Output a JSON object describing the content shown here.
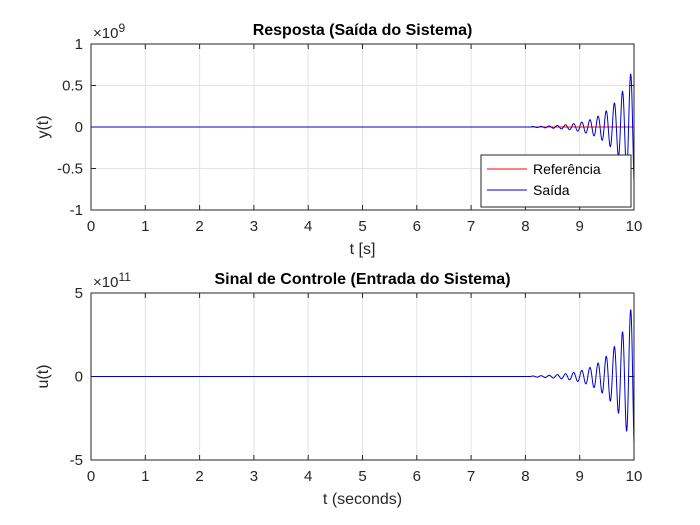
{
  "chart_data": [
    {
      "type": "line",
      "title": "Resposta (Saída do Sistema)",
      "xlabel": "t [s]",
      "ylabel": "y(t)",
      "xlim": [
        0,
        10
      ],
      "ylim": [
        -1,
        1
      ],
      "y_exponent": "9",
      "xticks": [
        "0",
        "1",
        "2",
        "3",
        "4",
        "5",
        "6",
        "7",
        "8",
        "9",
        "10"
      ],
      "yticks": [
        "1",
        "0.5",
        "0",
        "-0.5",
        "-1"
      ],
      "grid": true,
      "legend_position": "lower-right",
      "series": [
        {
          "name": "Referência",
          "color": "#ff0000",
          "x": [
            0,
            10
          ],
          "y": [
            0,
            0
          ]
        },
        {
          "name": "Saída",
          "color": "#0000cc",
          "envelope": {
            "t_start": 8.1,
            "t_end": 10.0,
            "peak_start": 0.005,
            "peak_end": 0.75,
            "period": 0.15
          }
        }
      ]
    },
    {
      "type": "line",
      "title": "Sinal de Controle (Entrada do Sistema)",
      "xlabel": "t (seconds)",
      "ylabel": "u(t)",
      "xlim": [
        0,
        10
      ],
      "ylim": [
        -5,
        5
      ],
      "y_exponent": "11",
      "xticks": [
        "0",
        "1",
        "2",
        "3",
        "4",
        "5",
        "6",
        "7",
        "8",
        "9",
        "10"
      ],
      "yticks": [
        "5",
        "0",
        "-5"
      ],
      "grid": true,
      "series": [
        {
          "color": "#0000cc",
          "envelope": {
            "t_start": 8.1,
            "t_end": 10.0,
            "peak_start": 0.03,
            "peak_end": 4.7,
            "period": 0.15
          }
        }
      ]
    }
  ]
}
